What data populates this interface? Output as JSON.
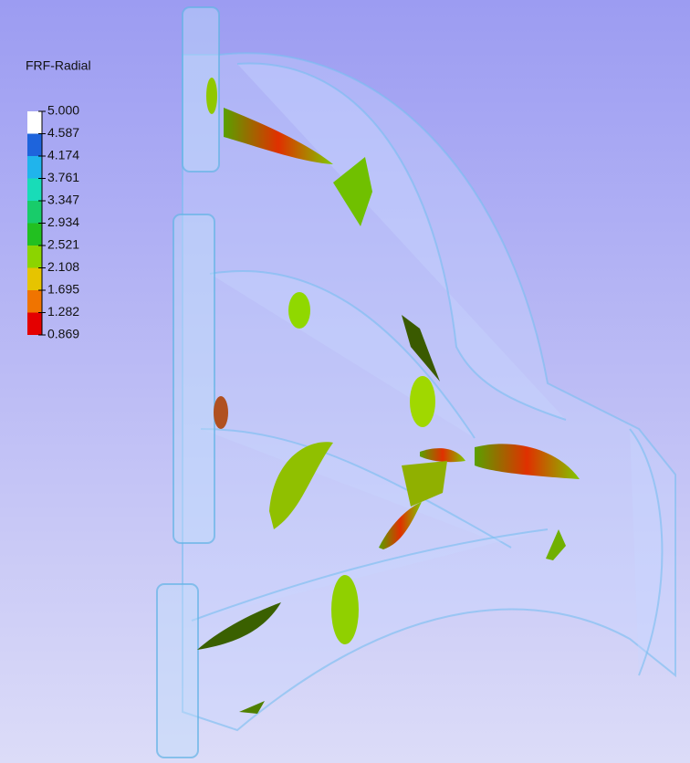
{
  "legend": {
    "title": "FRF-Radial",
    "labels": [
      "5.000",
      "4.587",
      "4.174",
      "3.761",
      "3.347",
      "2.934",
      "2.521",
      "2.108",
      "1.695",
      "1.282",
      "0.869"
    ]
  }
}
